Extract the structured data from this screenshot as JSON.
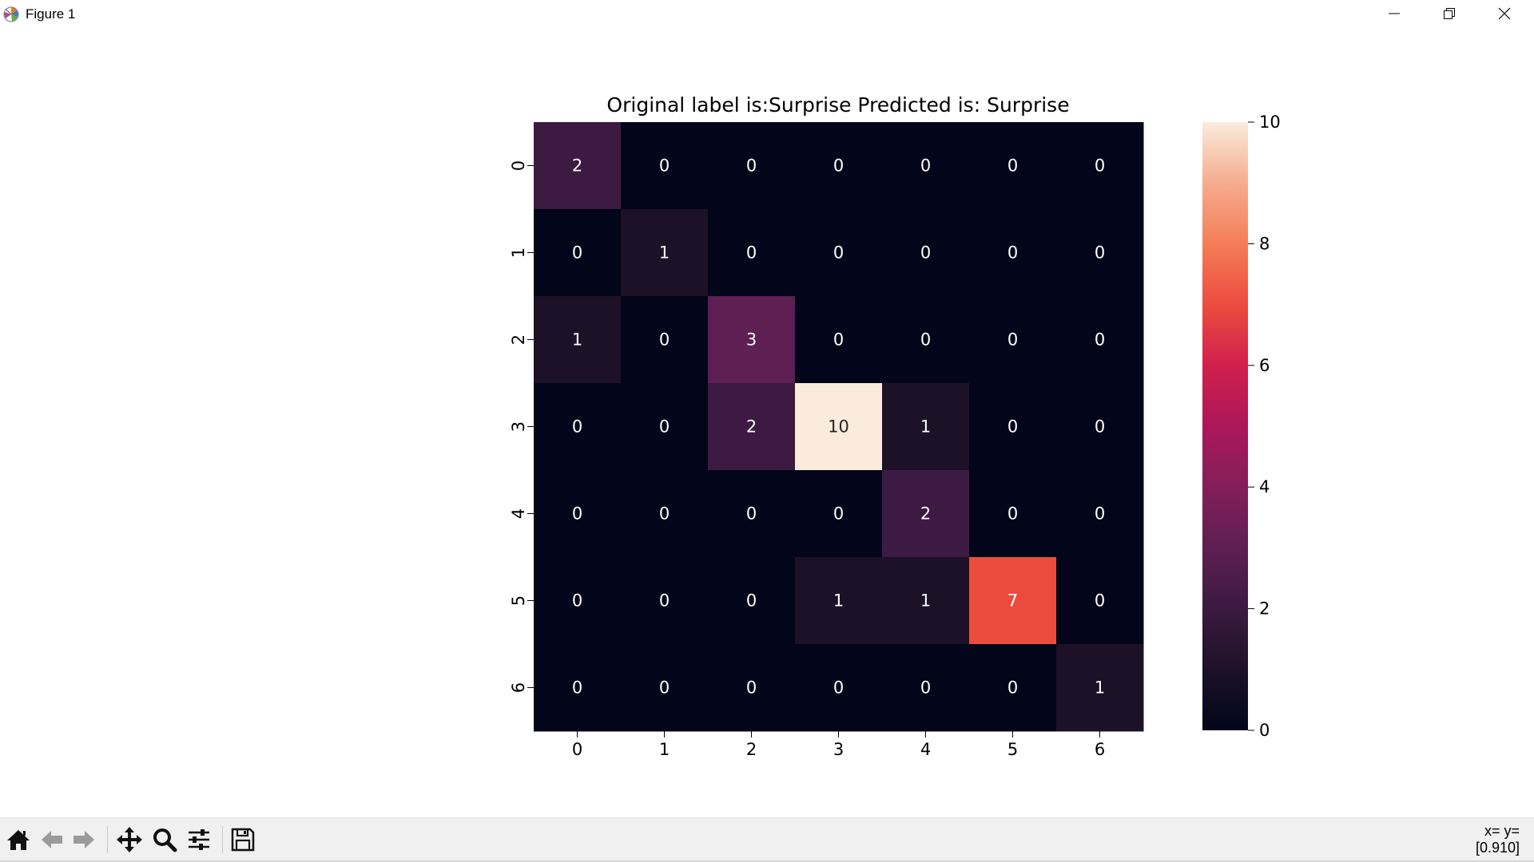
{
  "window": {
    "title": "Figure 1",
    "controls": {
      "minimize_icon": "minimize-icon",
      "maximize_icon": "restore-icon",
      "close_icon": "close-icon"
    }
  },
  "toolbar": {
    "buttons": [
      {
        "name": "home-button",
        "icon": "home-icon"
      },
      {
        "name": "back-button",
        "icon": "back-arrow-icon"
      },
      {
        "name": "forward-button",
        "icon": "forward-arrow-icon"
      },
      {
        "name": "pan-button",
        "icon": "move-icon"
      },
      {
        "name": "zoom-button",
        "icon": "magnifier-icon"
      },
      {
        "name": "configure-subplots-button",
        "icon": "sliders-icon"
      },
      {
        "name": "save-button",
        "icon": "floppy-disk-icon"
      }
    ],
    "coords_line1": "x=  y=",
    "coords_line2": "[0.910]"
  },
  "chart_data": {
    "type": "heatmap",
    "title": "Original label is:Surprise Predicted is: Surprise",
    "xlabel": "",
    "ylabel": "",
    "x_ticks": [
      "0",
      "1",
      "2",
      "3",
      "4",
      "5",
      "6"
    ],
    "y_ticks": [
      "0",
      "1",
      "2",
      "3",
      "4",
      "5",
      "6"
    ],
    "matrix": [
      [
        2,
        0,
        0,
        0,
        0,
        0,
        0
      ],
      [
        0,
        1,
        0,
        0,
        0,
        0,
        0
      ],
      [
        1,
        0,
        3,
        0,
        0,
        0,
        0
      ],
      [
        0,
        0,
        2,
        10,
        1,
        0,
        0
      ],
      [
        0,
        0,
        0,
        0,
        2,
        0,
        0
      ],
      [
        0,
        0,
        0,
        1,
        1,
        7,
        0
      ],
      [
        0,
        0,
        0,
        0,
        0,
        0,
        1
      ]
    ],
    "colorbar": {
      "range": [
        0,
        10
      ],
      "ticks": [
        "0",
        "2",
        "4",
        "6",
        "8",
        "10"
      ],
      "colormap": "rocket"
    },
    "annotations": true
  }
}
